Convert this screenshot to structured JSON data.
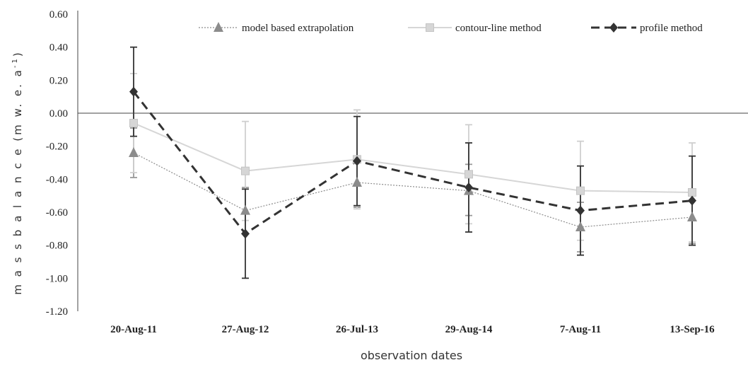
{
  "chart_data": {
    "type": "line",
    "categories": [
      "20-Aug-11",
      "27-Aug-12",
      "26-Jul-13",
      "29-Aug-14",
      "7-Aug-11",
      "13-Sep-16"
    ],
    "xlabel": "observation dates",
    "ylabel_main": "m a s s  b a l a n c e (m w. e. a",
    "ylabel_sup": "-1",
    "ylabel_close": ")",
    "ylim": [
      -1.2,
      0.6
    ],
    "yticks": [
      0.6,
      0.4,
      0.2,
      0.0,
      -0.2,
      -0.4,
      -0.6,
      -0.8,
      -1.0,
      -1.2
    ],
    "ytick_labels": [
      "0.60",
      "0.40",
      "0.20",
      "0.00",
      "-0.20",
      "-0.40",
      "-0.60",
      "-0.80",
      "-1.00",
      "-1.20"
    ],
    "legend_position": "top",
    "series": [
      {
        "name": "model based extrapolation",
        "values": [
          -0.24,
          -0.59,
          -0.42,
          -0.47,
          -0.69,
          -0.63
        ],
        "err_low": [
          -0.39,
          -0.73,
          -0.57,
          -0.62,
          -0.84,
          -0.79
        ],
        "err_high": [
          -0.09,
          -0.45,
          -0.27,
          -0.31,
          -0.54,
          -0.47
        ],
        "color": "#8c8c8c",
        "marker": "triangle",
        "line_style": "dotted"
      },
      {
        "name": "contour-line method",
        "values": [
          -0.06,
          -0.35,
          -0.28,
          -0.37,
          -0.47,
          -0.48
        ],
        "err_low": [
          -0.36,
          -0.65,
          -0.58,
          -0.67,
          -0.77,
          -0.78
        ],
        "err_high": [
          0.24,
          -0.05,
          0.02,
          -0.07,
          -0.17,
          -0.18
        ],
        "color": "#d6d6d6",
        "marker": "square",
        "line_style": "solid"
      },
      {
        "name": "profile method",
        "values": [
          0.13,
          -0.73,
          -0.29,
          -0.45,
          -0.59,
          -0.53
        ],
        "err_low": [
          -0.14,
          -1.0,
          -0.56,
          -0.72,
          -0.86,
          -0.8
        ],
        "err_high": [
          0.4,
          -0.46,
          -0.02,
          -0.18,
          -0.32,
          -0.26
        ],
        "color": "#333333",
        "marker": "diamond",
        "line_style": "dashed"
      }
    ]
  }
}
